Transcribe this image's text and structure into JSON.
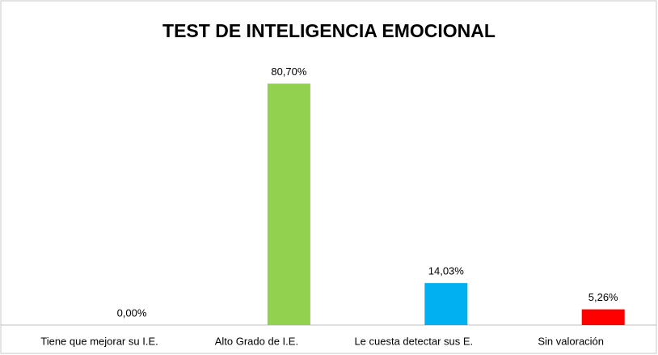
{
  "chart_data": {
    "type": "bar",
    "title": "TEST DE INTELIGENCIA EMOCIONAL",
    "categories": [
      "Tiene que mejorar su  I.E.",
      "Alto Grado de  I.E.",
      "Le cuesta detectar sus E.",
      "Sin valoración"
    ],
    "values": [
      0,
      80.7,
      14.03,
      5.26
    ],
    "value_labels": [
      "0,00%",
      "80,70%",
      "14,03%",
      "5,26%"
    ],
    "colors": [
      "#92d050",
      "#92d050",
      "#00b0f0",
      "#ff0000"
    ],
    "ylim": [
      0,
      90
    ]
  }
}
